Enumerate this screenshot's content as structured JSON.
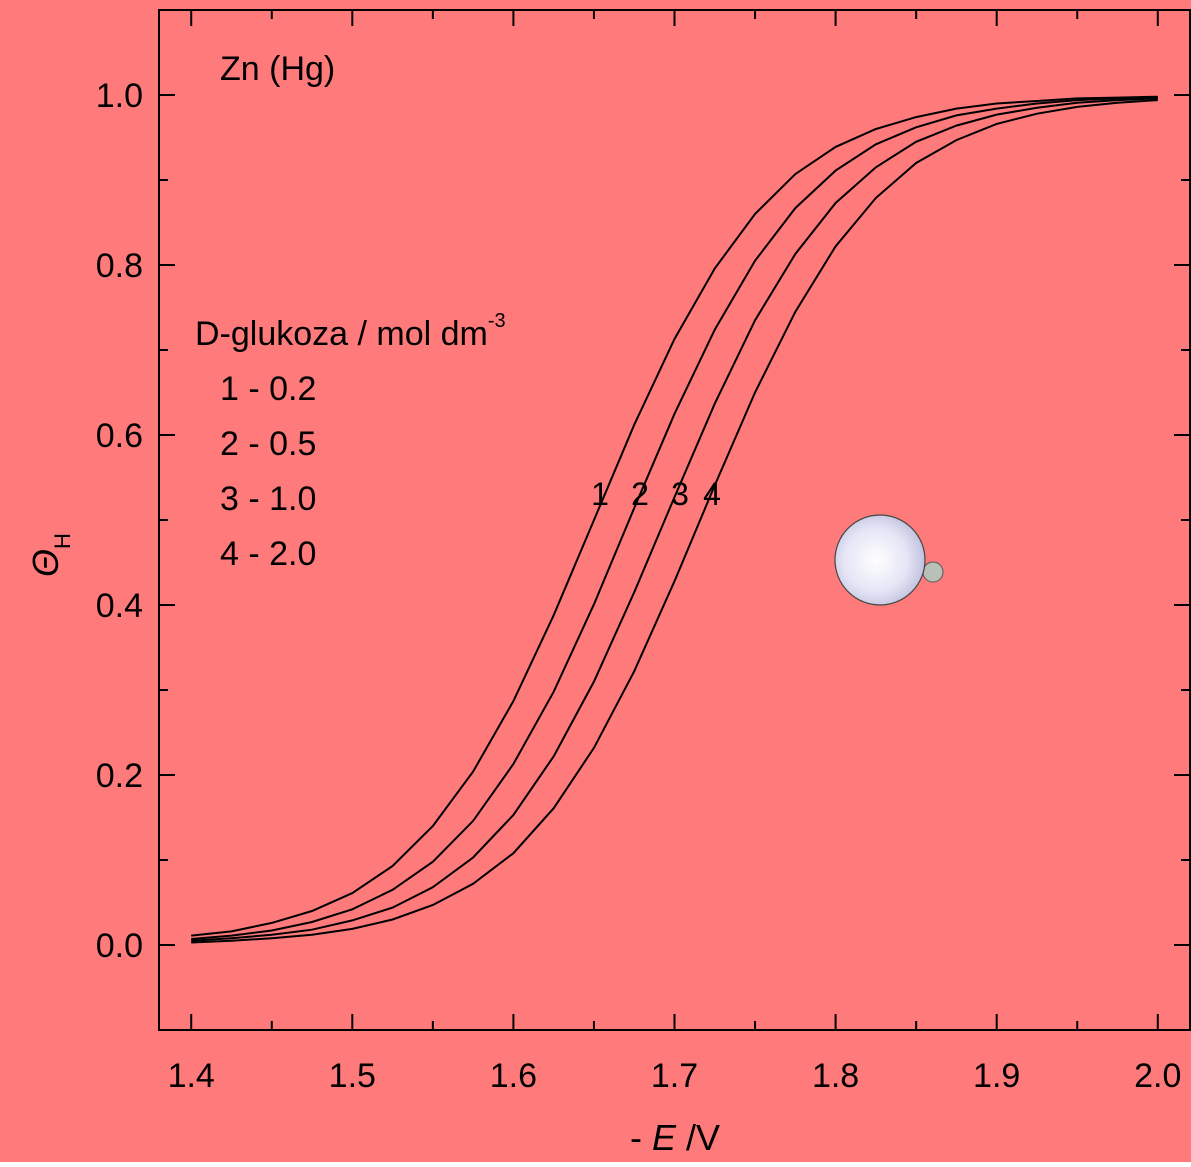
{
  "chart_data": {
    "type": "line",
    "annotation": "Zn (Hg)",
    "legend_title": "D-glukoza / mol dm",
    "legend_title_sup": "-3",
    "legend_entries": [
      "1 - 0.2",
      "2 - 0.5",
      "3 - 1.0",
      "4 - 2.0"
    ],
    "x_label_parts": [
      "- ",
      "E",
      " /V"
    ],
    "y_label_parts": [
      "Θ",
      "H"
    ],
    "x": [
      1.4,
      1.425,
      1.45,
      1.475,
      1.5,
      1.525,
      1.55,
      1.575,
      1.6,
      1.625,
      1.65,
      1.675,
      1.7,
      1.725,
      1.75,
      1.775,
      1.8,
      1.825,
      1.85,
      1.875,
      1.9,
      1.925,
      1.95,
      1.975,
      2.0
    ],
    "series": [
      {
        "name": "1",
        "color": "#000000",
        "values": [
          0.011,
          0.016,
          0.026,
          0.04,
          0.061,
          0.093,
          0.14,
          0.204,
          0.287,
          0.388,
          0.5,
          0.612,
          0.713,
          0.796,
          0.86,
          0.907,
          0.939,
          0.96,
          0.974,
          0.984,
          0.99,
          0.993,
          0.996,
          0.997,
          0.998
        ]
      },
      {
        "name": "2",
        "color": "#000000",
        "values": [
          0.007,
          0.011,
          0.017,
          0.027,
          0.042,
          0.065,
          0.098,
          0.146,
          0.213,
          0.298,
          0.401,
          0.514,
          0.625,
          0.724,
          0.805,
          0.867,
          0.911,
          0.942,
          0.962,
          0.976,
          0.984,
          0.99,
          0.994,
          0.996,
          0.997
        ]
      },
      {
        "name": "3",
        "color": "#000000",
        "values": [
          0.005,
          0.008,
          0.012,
          0.018,
          0.029,
          0.044,
          0.068,
          0.103,
          0.153,
          0.222,
          0.31,
          0.415,
          0.527,
          0.637,
          0.735,
          0.813,
          0.873,
          0.915,
          0.945,
          0.964,
          0.977,
          0.985,
          0.991,
          0.994,
          0.996
        ]
      },
      {
        "name": "4",
        "color": "#000000",
        "values": [
          0.003,
          0.005,
          0.008,
          0.012,
          0.019,
          0.03,
          0.047,
          0.072,
          0.108,
          0.161,
          0.232,
          0.322,
          0.428,
          0.541,
          0.65,
          0.745,
          0.822,
          0.879,
          0.92,
          0.947,
          0.966,
          0.978,
          0.986,
          0.991,
          0.994
        ]
      }
    ],
    "xlim": [
      1.38,
      2.02
    ],
    "ylim": [
      -0.1,
      1.1
    ],
    "xticks": [
      1.4,
      1.5,
      1.6,
      1.7,
      1.8,
      1.9,
      {
        "value": 2,
        "label": "2.0"
      }
    ],
    "yticks": [
      {
        "value": 0,
        "label": "0.0"
      },
      0.2,
      0.4,
      0.6,
      0.8,
      {
        "value": 1,
        "label": "1.0"
      }
    ],
    "xminorticks": [
      1.45,
      1.55,
      1.65,
      1.75,
      1.85,
      1.95
    ],
    "yminorticks": [
      0.1,
      0.3,
      0.5,
      0.7,
      0.9
    ],
    "background": "#ff7a7a"
  }
}
